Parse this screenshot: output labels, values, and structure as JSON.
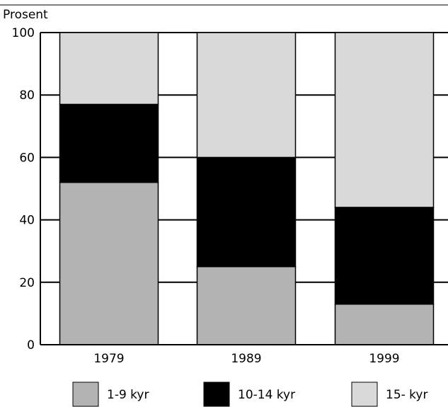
{
  "chart_data": {
    "type": "bar",
    "stacked": true,
    "ylabel": "Prosent",
    "xlabel": "",
    "title": "",
    "ylim": [
      0,
      100
    ],
    "yticks": [
      0,
      20,
      40,
      60,
      80,
      100
    ],
    "categories": [
      "1979",
      "1989",
      "1999"
    ],
    "series": [
      {
        "name": "1-9 kyr",
        "values": [
          52,
          25,
          13
        ],
        "color": "#b3b3b3"
      },
      {
        "name": "10-14 kyr",
        "values": [
          25,
          35,
          31
        ],
        "color": "#000000"
      },
      {
        "name": "15- kyr",
        "values": [
          23,
          40,
          56
        ],
        "color": "#d9d9d9"
      }
    ],
    "grid": "horizontal at major ticks",
    "legend": "bottom"
  }
}
